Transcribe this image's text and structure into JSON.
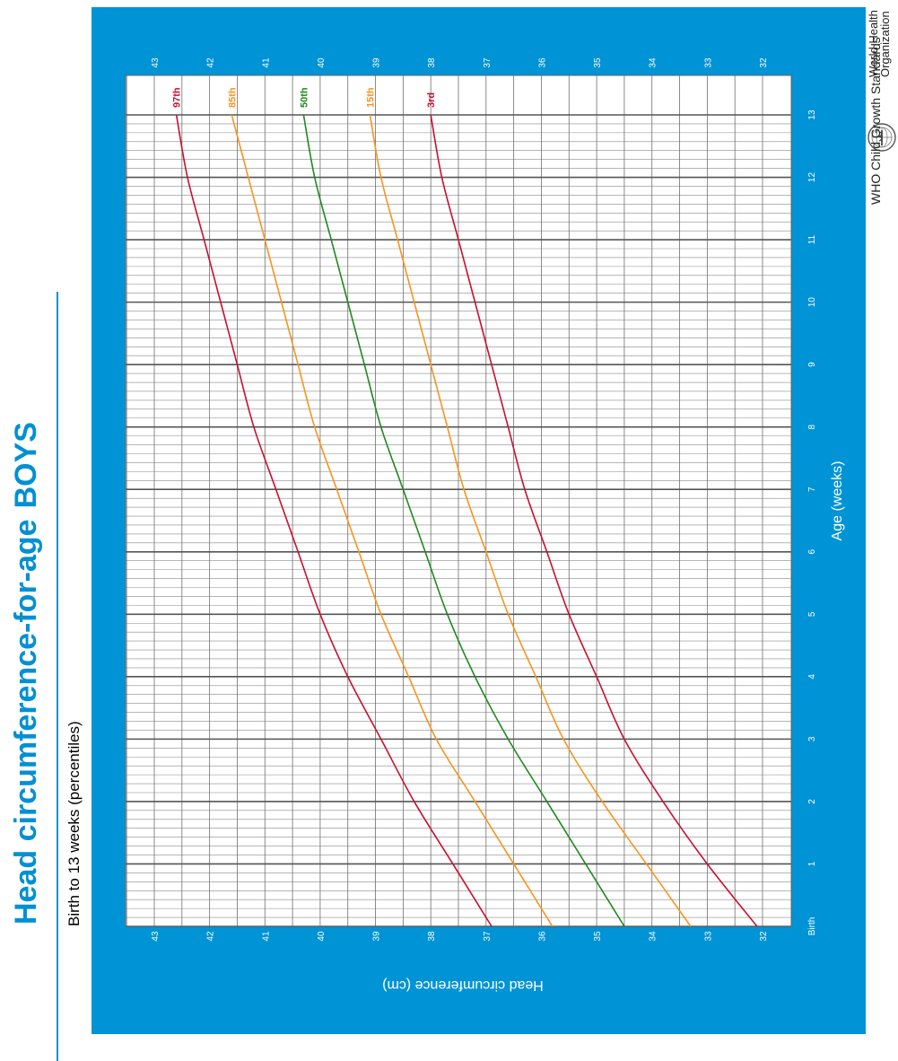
{
  "header": {
    "title": "Head circumference-for-age",
    "sex": "BOYS",
    "subtitle": "Birth to 13 weeks (percentiles)"
  },
  "branding": {
    "org_line1": "World Health",
    "org_line2": "Organization",
    "footer": "WHO Child Growth Standards"
  },
  "colors": {
    "accent": "#0090d4",
    "frame": "#0093d6",
    "p3": "#c8102e",
    "p15": "#f7941d",
    "p50": "#1e8a1e",
    "p85": "#f7941d",
    "p97": "#c8102e"
  },
  "chart_data": {
    "type": "line",
    "title": "Head circumference-for-age BOYS",
    "subtitle": "Birth to 13 weeks (percentiles)",
    "xlabel": "Age (weeks)",
    "ylabel": "Head circumference (cm)",
    "xlim": [
      0,
      13
    ],
    "ylim": [
      32,
      43
    ],
    "x_ticks": [
      "Birth",
      "1",
      "2",
      "3",
      "4",
      "5",
      "6",
      "7",
      "8",
      "9",
      "10",
      "11",
      "12",
      "13"
    ],
    "y_ticks": [
      "32",
      "33",
      "34",
      "35",
      "36",
      "37",
      "38",
      "39",
      "40",
      "41",
      "42",
      "43"
    ],
    "grid": true,
    "x": [
      0,
      1,
      2,
      3,
      4,
      5,
      6,
      7,
      8,
      9,
      10,
      11,
      12,
      13
    ],
    "series": [
      {
        "name": "3rd",
        "values": [
          32.1,
          33.0,
          33.8,
          34.5,
          35.0,
          35.5,
          35.9,
          36.3,
          36.6,
          36.9,
          37.2,
          37.5,
          37.8,
          38.0
        ]
      },
      {
        "name": "15th",
        "values": [
          33.3,
          34.1,
          34.9,
          35.6,
          36.1,
          36.6,
          37.0,
          37.4,
          37.7,
          38.0,
          38.3,
          38.6,
          38.9,
          39.1
        ]
      },
      {
        "name": "50th",
        "values": [
          34.5,
          35.2,
          35.9,
          36.6,
          37.2,
          37.7,
          38.1,
          38.5,
          38.9,
          39.2,
          39.5,
          39.8,
          40.1,
          40.3
        ]
      },
      {
        "name": "85th",
        "values": [
          35.8,
          36.5,
          37.2,
          37.9,
          38.4,
          38.9,
          39.3,
          39.7,
          40.1,
          40.4,
          40.7,
          41.0,
          41.3,
          41.6
        ]
      },
      {
        "name": "97th",
        "values": [
          36.9,
          37.6,
          38.3,
          38.9,
          39.5,
          40.0,
          40.4,
          40.8,
          41.2,
          41.5,
          41.8,
          42.1,
          42.4,
          42.6
        ]
      }
    ]
  }
}
